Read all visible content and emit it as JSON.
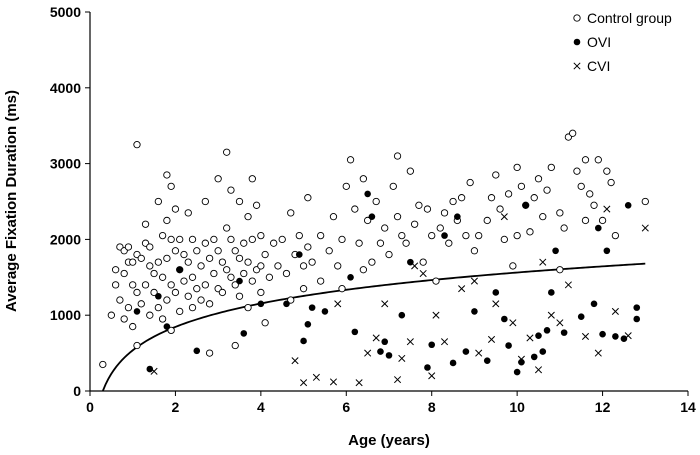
{
  "chart_data": {
    "type": "scatter",
    "title": "",
    "xlabel": "Age (years)",
    "ylabel": "Average Fixation Duration (ms)",
    "xlim": [
      0,
      14
    ],
    "ylim": [
      0,
      5000
    ],
    "x_ticks": [
      "0",
      "2",
      "4",
      "6",
      "8",
      "10",
      "12",
      "14"
    ],
    "y_ticks": [
      "0",
      "1000",
      "2000",
      "3000",
      "4000",
      "5000"
    ],
    "grid": false,
    "legend_position": "top-right",
    "series": [
      {
        "name": "Control group",
        "marker": "open-circle",
        "color": "#000000",
        "points": [
          [
            0.3,
            350
          ],
          [
            0.5,
            1000
          ],
          [
            0.6,
            1600
          ],
          [
            0.6,
            1400
          ],
          [
            0.7,
            1900
          ],
          [
            0.7,
            1200
          ],
          [
            0.8,
            1850
          ],
          [
            0.8,
            1550
          ],
          [
            0.8,
            950
          ],
          [
            0.9,
            1900
          ],
          [
            0.9,
            1700
          ],
          [
            0.9,
            1100
          ],
          [
            1.0,
            1700
          ],
          [
            1.0,
            1400
          ],
          [
            1.0,
            850
          ],
          [
            1.1,
            3250
          ],
          [
            1.1,
            1800
          ],
          [
            1.1,
            1300
          ],
          [
            1.1,
            600
          ],
          [
            1.2,
            1750
          ],
          [
            1.2,
            1150
          ],
          [
            1.3,
            1950
          ],
          [
            1.3,
            2200
          ],
          [
            1.3,
            1400
          ],
          [
            1.4,
            1900
          ],
          [
            1.4,
            1650
          ],
          [
            1.4,
            1000
          ],
          [
            1.5,
            1550
          ],
          [
            1.5,
            1300
          ],
          [
            1.6,
            2500
          ],
          [
            1.6,
            1700
          ],
          [
            1.6,
            1100
          ],
          [
            1.7,
            2050
          ],
          [
            1.7,
            1500
          ],
          [
            1.7,
            950
          ],
          [
            1.8,
            2850
          ],
          [
            1.8,
            2250
          ],
          [
            1.8,
            1750
          ],
          [
            1.8,
            1200
          ],
          [
            1.9,
            2700
          ],
          [
            1.9,
            2000
          ],
          [
            1.9,
            1400
          ],
          [
            1.9,
            800
          ],
          [
            2.0,
            2400
          ],
          [
            2.0,
            1850
          ],
          [
            2.0,
            1300
          ],
          [
            2.1,
            2000
          ],
          [
            2.1,
            1600
          ],
          [
            2.1,
            1050
          ],
          [
            2.2,
            1800
          ],
          [
            2.2,
            1450
          ],
          [
            2.3,
            2350
          ],
          [
            2.3,
            1700
          ],
          [
            2.3,
            1250
          ],
          [
            2.4,
            2000
          ],
          [
            2.4,
            1500
          ],
          [
            2.4,
            1100
          ],
          [
            2.5,
            1850
          ],
          [
            2.5,
            1350
          ],
          [
            2.6,
            1650
          ],
          [
            2.6,
            1200
          ],
          [
            2.7,
            2500
          ],
          [
            2.7,
            1950
          ],
          [
            2.7,
            1400
          ],
          [
            2.8,
            1750
          ],
          [
            2.8,
            1150
          ],
          [
            2.8,
            500
          ],
          [
            2.9,
            2000
          ],
          [
            2.9,
            1550
          ],
          [
            3.0,
            2800
          ],
          [
            3.0,
            1850
          ],
          [
            3.0,
            1350
          ],
          [
            3.1,
            1700
          ],
          [
            3.1,
            1300
          ],
          [
            3.2,
            3150
          ],
          [
            3.2,
            2150
          ],
          [
            3.2,
            1600
          ],
          [
            3.3,
            2650
          ],
          [
            3.3,
            2000
          ],
          [
            3.3,
            1500
          ],
          [
            3.4,
            1850
          ],
          [
            3.4,
            1400
          ],
          [
            3.4,
            600
          ],
          [
            3.5,
            2500
          ],
          [
            3.5,
            1750
          ],
          [
            3.5,
            1250
          ],
          [
            3.6,
            1950
          ],
          [
            3.6,
            1550
          ],
          [
            3.7,
            2300
          ],
          [
            3.7,
            1700
          ],
          [
            3.7,
            1100
          ],
          [
            3.8,
            2800
          ],
          [
            3.8,
            2000
          ],
          [
            3.8,
            1450
          ],
          [
            3.9,
            2450
          ],
          [
            3.9,
            1600
          ],
          [
            4.0,
            2050
          ],
          [
            4.0,
            1650
          ],
          [
            4.0,
            1300
          ],
          [
            4.1,
            1800
          ],
          [
            4.1,
            900
          ],
          [
            4.2,
            1500
          ],
          [
            4.3,
            1950
          ],
          [
            4.4,
            1650
          ],
          [
            4.5,
            2000
          ],
          [
            4.6,
            1550
          ],
          [
            4.7,
            2350
          ],
          [
            4.7,
            1200
          ],
          [
            4.8,
            1800
          ],
          [
            4.9,
            2050
          ],
          [
            5.0,
            1650
          ],
          [
            5.0,
            1350
          ],
          [
            5.1,
            2550
          ],
          [
            5.1,
            1900
          ],
          [
            5.2,
            1700
          ],
          [
            5.4,
            2050
          ],
          [
            5.4,
            1450
          ],
          [
            5.6,
            1850
          ],
          [
            5.7,
            2300
          ],
          [
            5.8,
            1650
          ],
          [
            5.9,
            2000
          ],
          [
            5.9,
            1350
          ],
          [
            6.0,
            2700
          ],
          [
            6.1,
            3050
          ],
          [
            6.2,
            2400
          ],
          [
            6.3,
            1950
          ],
          [
            6.4,
            2800
          ],
          [
            6.4,
            1600
          ],
          [
            6.5,
            2250
          ],
          [
            6.6,
            1700
          ],
          [
            6.7,
            2500
          ],
          [
            6.8,
            1950
          ],
          [
            6.9,
            2150
          ],
          [
            7.0,
            1800
          ],
          [
            7.1,
            2700
          ],
          [
            7.2,
            3100
          ],
          [
            7.2,
            2300
          ],
          [
            7.3,
            2050
          ],
          [
            7.4,
            1950
          ],
          [
            7.5,
            2900
          ],
          [
            7.6,
            2200
          ],
          [
            7.7,
            2450
          ],
          [
            7.8,
            1700
          ],
          [
            7.9,
            2400
          ],
          [
            8.0,
            2050
          ],
          [
            8.1,
            1450
          ],
          [
            8.2,
            2150
          ],
          [
            8.3,
            2350
          ],
          [
            8.4,
            1950
          ],
          [
            8.5,
            2500
          ],
          [
            8.6,
            2250
          ],
          [
            8.7,
            2550
          ],
          [
            8.8,
            2050
          ],
          [
            8.9,
            2750
          ],
          [
            9.0,
            1850
          ],
          [
            9.1,
            2050
          ],
          [
            9.3,
            2250
          ],
          [
            9.4,
            2550
          ],
          [
            9.5,
            2850
          ],
          [
            9.6,
            2400
          ],
          [
            9.7,
            2000
          ],
          [
            9.8,
            2600
          ],
          [
            9.9,
            1650
          ],
          [
            10.0,
            2950
          ],
          [
            10.0,
            2050
          ],
          [
            10.1,
            2700
          ],
          [
            10.2,
            2450
          ],
          [
            10.3,
            2100
          ],
          [
            10.4,
            2550
          ],
          [
            10.5,
            2800
          ],
          [
            10.6,
            2300
          ],
          [
            10.7,
            2650
          ],
          [
            10.8,
            2950
          ],
          [
            11.0,
            2350
          ],
          [
            11.0,
            1600
          ],
          [
            11.1,
            2150
          ],
          [
            11.2,
            3350
          ],
          [
            11.3,
            3400
          ],
          [
            11.4,
            2900
          ],
          [
            11.5,
            2700
          ],
          [
            11.6,
            3050
          ],
          [
            11.6,
            2250
          ],
          [
            11.7,
            2600
          ],
          [
            11.8,
            2450
          ],
          [
            11.9,
            3050
          ],
          [
            12.0,
            2250
          ],
          [
            12.1,
            2900
          ],
          [
            12.2,
            2750
          ],
          [
            12.3,
            2050
          ],
          [
            13.0,
            2500
          ]
        ]
      },
      {
        "name": "OVI",
        "marker": "filled-circle",
        "color": "#000000",
        "points": [
          [
            1.1,
            1050
          ],
          [
            1.4,
            290
          ],
          [
            1.6,
            1250
          ],
          [
            1.8,
            850
          ],
          [
            2.1,
            1600
          ],
          [
            2.5,
            530
          ],
          [
            3.5,
            1450
          ],
          [
            3.6,
            760
          ],
          [
            4.0,
            1150
          ],
          [
            4.6,
            1150
          ],
          [
            4.9,
            1800
          ],
          [
            5.0,
            660
          ],
          [
            5.1,
            880
          ],
          [
            5.2,
            1100
          ],
          [
            5.5,
            1050
          ],
          [
            6.1,
            1500
          ],
          [
            6.2,
            780
          ],
          [
            6.5,
            2600
          ],
          [
            6.6,
            2300
          ],
          [
            6.8,
            520
          ],
          [
            6.9,
            650
          ],
          [
            7.0,
            470
          ],
          [
            7.3,
            1000
          ],
          [
            7.5,
            1700
          ],
          [
            7.9,
            310
          ],
          [
            8.0,
            610
          ],
          [
            8.3,
            2050
          ],
          [
            8.5,
            370
          ],
          [
            8.6,
            2300
          ],
          [
            8.8,
            520
          ],
          [
            9.0,
            1050
          ],
          [
            9.3,
            400
          ],
          [
            9.5,
            1300
          ],
          [
            9.7,
            950
          ],
          [
            9.8,
            600
          ],
          [
            10.0,
            250
          ],
          [
            10.1,
            380
          ],
          [
            10.2,
            2450
          ],
          [
            10.4,
            450
          ],
          [
            10.5,
            730
          ],
          [
            10.6,
            520
          ],
          [
            10.7,
            800
          ],
          [
            10.8,
            1300
          ],
          [
            10.9,
            1850
          ],
          [
            11.1,
            770
          ],
          [
            11.5,
            980
          ],
          [
            11.8,
            1150
          ],
          [
            11.9,
            2150
          ],
          [
            12.0,
            750
          ],
          [
            12.1,
            1850
          ],
          [
            12.3,
            720
          ],
          [
            12.5,
            690
          ],
          [
            12.6,
            2450
          ],
          [
            12.8,
            1100
          ],
          [
            12.8,
            950
          ]
        ]
      },
      {
        "name": "CVI",
        "marker": "cross",
        "color": "#000000",
        "points": [
          [
            1.5,
            260
          ],
          [
            4.8,
            400
          ],
          [
            5.0,
            110
          ],
          [
            5.3,
            180
          ],
          [
            5.7,
            120
          ],
          [
            5.8,
            1150
          ],
          [
            6.3,
            110
          ],
          [
            6.5,
            500
          ],
          [
            6.7,
            700
          ],
          [
            6.9,
            1150
          ],
          [
            7.2,
            150
          ],
          [
            7.3,
            430
          ],
          [
            7.5,
            650
          ],
          [
            7.6,
            1650
          ],
          [
            7.8,
            1550
          ],
          [
            8.0,
            200
          ],
          [
            8.1,
            1000
          ],
          [
            8.3,
            650
          ],
          [
            8.7,
            1350
          ],
          [
            9.0,
            1450
          ],
          [
            9.1,
            500
          ],
          [
            9.4,
            680
          ],
          [
            9.5,
            1150
          ],
          [
            9.7,
            2300
          ],
          [
            9.9,
            900
          ],
          [
            10.1,
            420
          ],
          [
            10.3,
            700
          ],
          [
            10.5,
            280
          ],
          [
            10.6,
            1700
          ],
          [
            10.8,
            1000
          ],
          [
            11.0,
            900
          ],
          [
            11.2,
            1400
          ],
          [
            11.6,
            720
          ],
          [
            11.9,
            500
          ],
          [
            12.1,
            2400
          ],
          [
            12.3,
            1050
          ],
          [
            12.6,
            730
          ],
          [
            13.0,
            2150
          ]
        ]
      }
    ],
    "fitted_curve": {
      "name": "",
      "type": "logarithmic",
      "x_range": [
        0.3,
        13.0
      ],
      "y_at_start": 0,
      "y_at_end": 1680
    },
    "legend": [
      {
        "label": "Control group",
        "marker": "open-circle"
      },
      {
        "label": "OVI",
        "marker": "filled-circle"
      },
      {
        "label": "CVI",
        "marker": "cross"
      }
    ]
  }
}
